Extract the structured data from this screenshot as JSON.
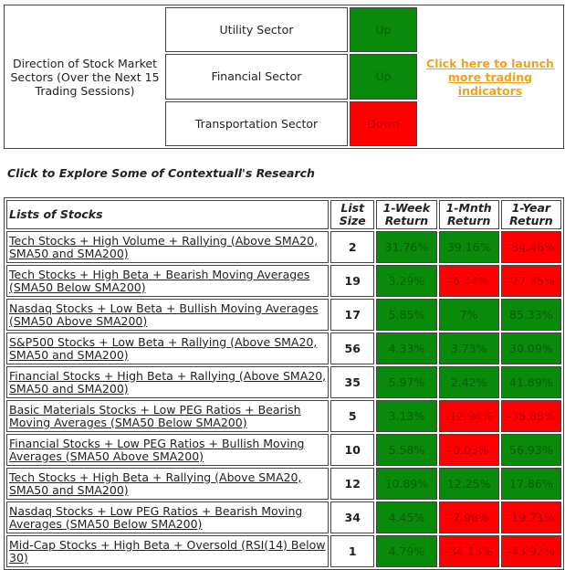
{
  "sectors": {
    "caption": "Direction of Stock Market Sectors (Over the Next 15 Trading Sessions)",
    "items": [
      {
        "name": "Utility Sector",
        "direction": "Up",
        "color": "#0a8a0a"
      },
      {
        "name": "Financial Sector",
        "direction": "Up",
        "color": "#0a8a0a"
      },
      {
        "name": "Transportation Sector",
        "direction": "Down",
        "color": "#ff0000"
      }
    ],
    "link": "Click here to launch more trading indicators"
  },
  "research_heading": "Click to Explore Some of Contextuall's Research",
  "table": {
    "headers": [
      "Lists of Stocks",
      "List Size",
      "1-Week Return",
      "1-Mnth Return",
      "1-Year Return"
    ],
    "rows": [
      {
        "cells": [
          "Tech Stocks + High Volume + Rallying (Above SMA20, SMA50 and SMA200)",
          "2",
          "31.76%",
          "39.16%",
          "-34.46%"
        ],
        "colors": [
          "#0a8a0a",
          "#0a8a0a",
          "#ff0000"
        ]
      },
      {
        "cells": [
          "Tech Stocks + High Beta + Bearish Moving Averages (SMA50 Below SMA200)",
          "19",
          "3.29%",
          "-6.44%",
          "-27.35%"
        ],
        "colors": [
          "#0a8a0a",
          "#ff0000",
          "#ff0000"
        ]
      },
      {
        "cells": [
          "Nasdaq Stocks + Low Beta + Bullish Moving Averages (SMA50 Above SMA200)",
          "17",
          "5.85%",
          "7%",
          "85.33%"
        ],
        "colors": [
          "#0a8a0a",
          "#0a8a0a",
          "#0a8a0a"
        ]
      },
      {
        "cells": [
          "S&P500 Stocks + Low Beta + Rallying (Above SMA20, SMA50 and SMA200)",
          "56",
          "4.33%",
          "3.73%",
          "30.09%"
        ],
        "colors": [
          "#0a8a0a",
          "#0a8a0a",
          "#0a8a0a"
        ]
      },
      {
        "cells": [
          "Financial Stocks + High Beta + Rallying (Above SMA20, SMA50 and SMA200)",
          "35",
          "5.97%",
          "2.42%",
          "41.89%"
        ],
        "colors": [
          "#0a8a0a",
          "#0a8a0a",
          "#0a8a0a"
        ]
      },
      {
        "cells": [
          "Basic Materials Stocks + Low PEG Ratios + Bearish Moving Averages (SMA50 Below SMA200)",
          "5",
          "3.13%",
          "-12.94%",
          "-35.85%"
        ],
        "colors": [
          "#0a8a0a",
          "#ff0000",
          "#ff0000"
        ]
      },
      {
        "cells": [
          "Financial Stocks + Low PEG Ratios + Bullish Moving Averages (SMA50 Above SMA200)",
          "10",
          "5.58%",
          "-0.03%",
          "56.93%"
        ],
        "colors": [
          "#0a8a0a",
          "#ff0000",
          "#0a8a0a"
        ]
      },
      {
        "cells": [
          "Tech Stocks + High Beta + Rallying (Above SMA20, SMA50 and SMA200)",
          "12",
          "10.89%",
          "12.25%",
          "17.86%"
        ],
        "colors": [
          "#0a8a0a",
          "#0a8a0a",
          "#0a8a0a"
        ]
      },
      {
        "cells": [
          "Nasdaq Stocks + Low PEG Ratios + Bearish Moving Averages (SMA50 Below SMA200)",
          "34",
          "4.45%",
          "-7.96%",
          "-19.71%"
        ],
        "colors": [
          "#0a8a0a",
          "#ff0000",
          "#ff0000"
        ]
      },
      {
        "cells": [
          "Mid-Cap Stocks + High Beta + Oversold (RSI(14) Below 30)",
          "1",
          "4.79%",
          "-34.13%",
          "-43.92%"
        ],
        "colors": [
          "#0a8a0a",
          "#ff0000",
          "#ff0000"
        ]
      }
    ]
  }
}
